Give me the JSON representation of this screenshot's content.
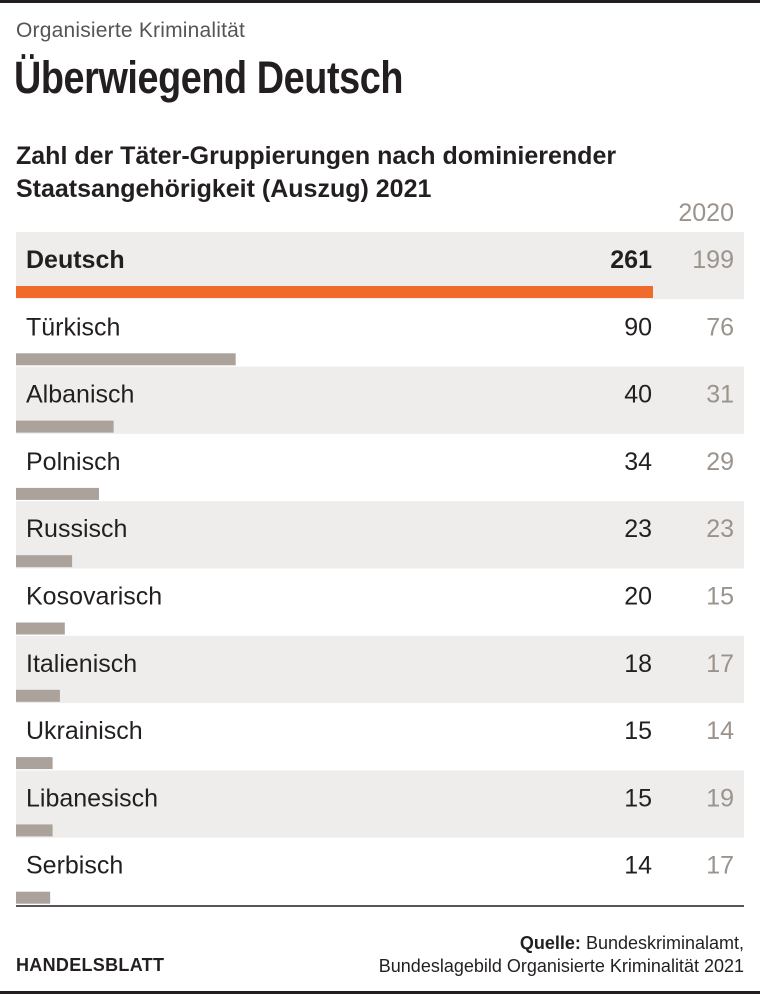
{
  "kicker": "Organisierte Kriminalität",
  "headline": "Überwiegend Deutsch",
  "chart_data": {
    "type": "bar",
    "subtitle": "Zahl der Täter-Gruppierungen nach dominierender Staatsangehörigkeit (Auszug) 2021",
    "comparison_header": "2020",
    "categories": [
      "Deutsch",
      "Türkisch",
      "Albanisch",
      "Polnisch",
      "Russisch",
      "Kosovarisch",
      "Italienisch",
      "Ukrainisch",
      "Libanesisch",
      "Serbisch"
    ],
    "series": [
      {
        "name": "2021",
        "values": [
          261,
          90,
          40,
          34,
          23,
          20,
          18,
          15,
          15,
          14
        ]
      },
      {
        "name": "2020",
        "values": [
          199,
          76,
          31,
          29,
          23,
          15,
          17,
          14,
          19,
          17
        ]
      }
    ],
    "highlight_category": "Deutsch",
    "colors": {
      "highlight_bar": "#f06a2b",
      "bar": "#aaa29b",
      "row_band": "#efedec",
      "prev_year_text": "#9b938c",
      "text": "#231f20"
    }
  },
  "footer": {
    "brand": "HANDELSBLATT",
    "source_label": "Quelle:",
    "source_line1": "Bundeskriminalamt,",
    "source_line2": "Bundeslagebild Organisierte Kriminalität 2021"
  }
}
